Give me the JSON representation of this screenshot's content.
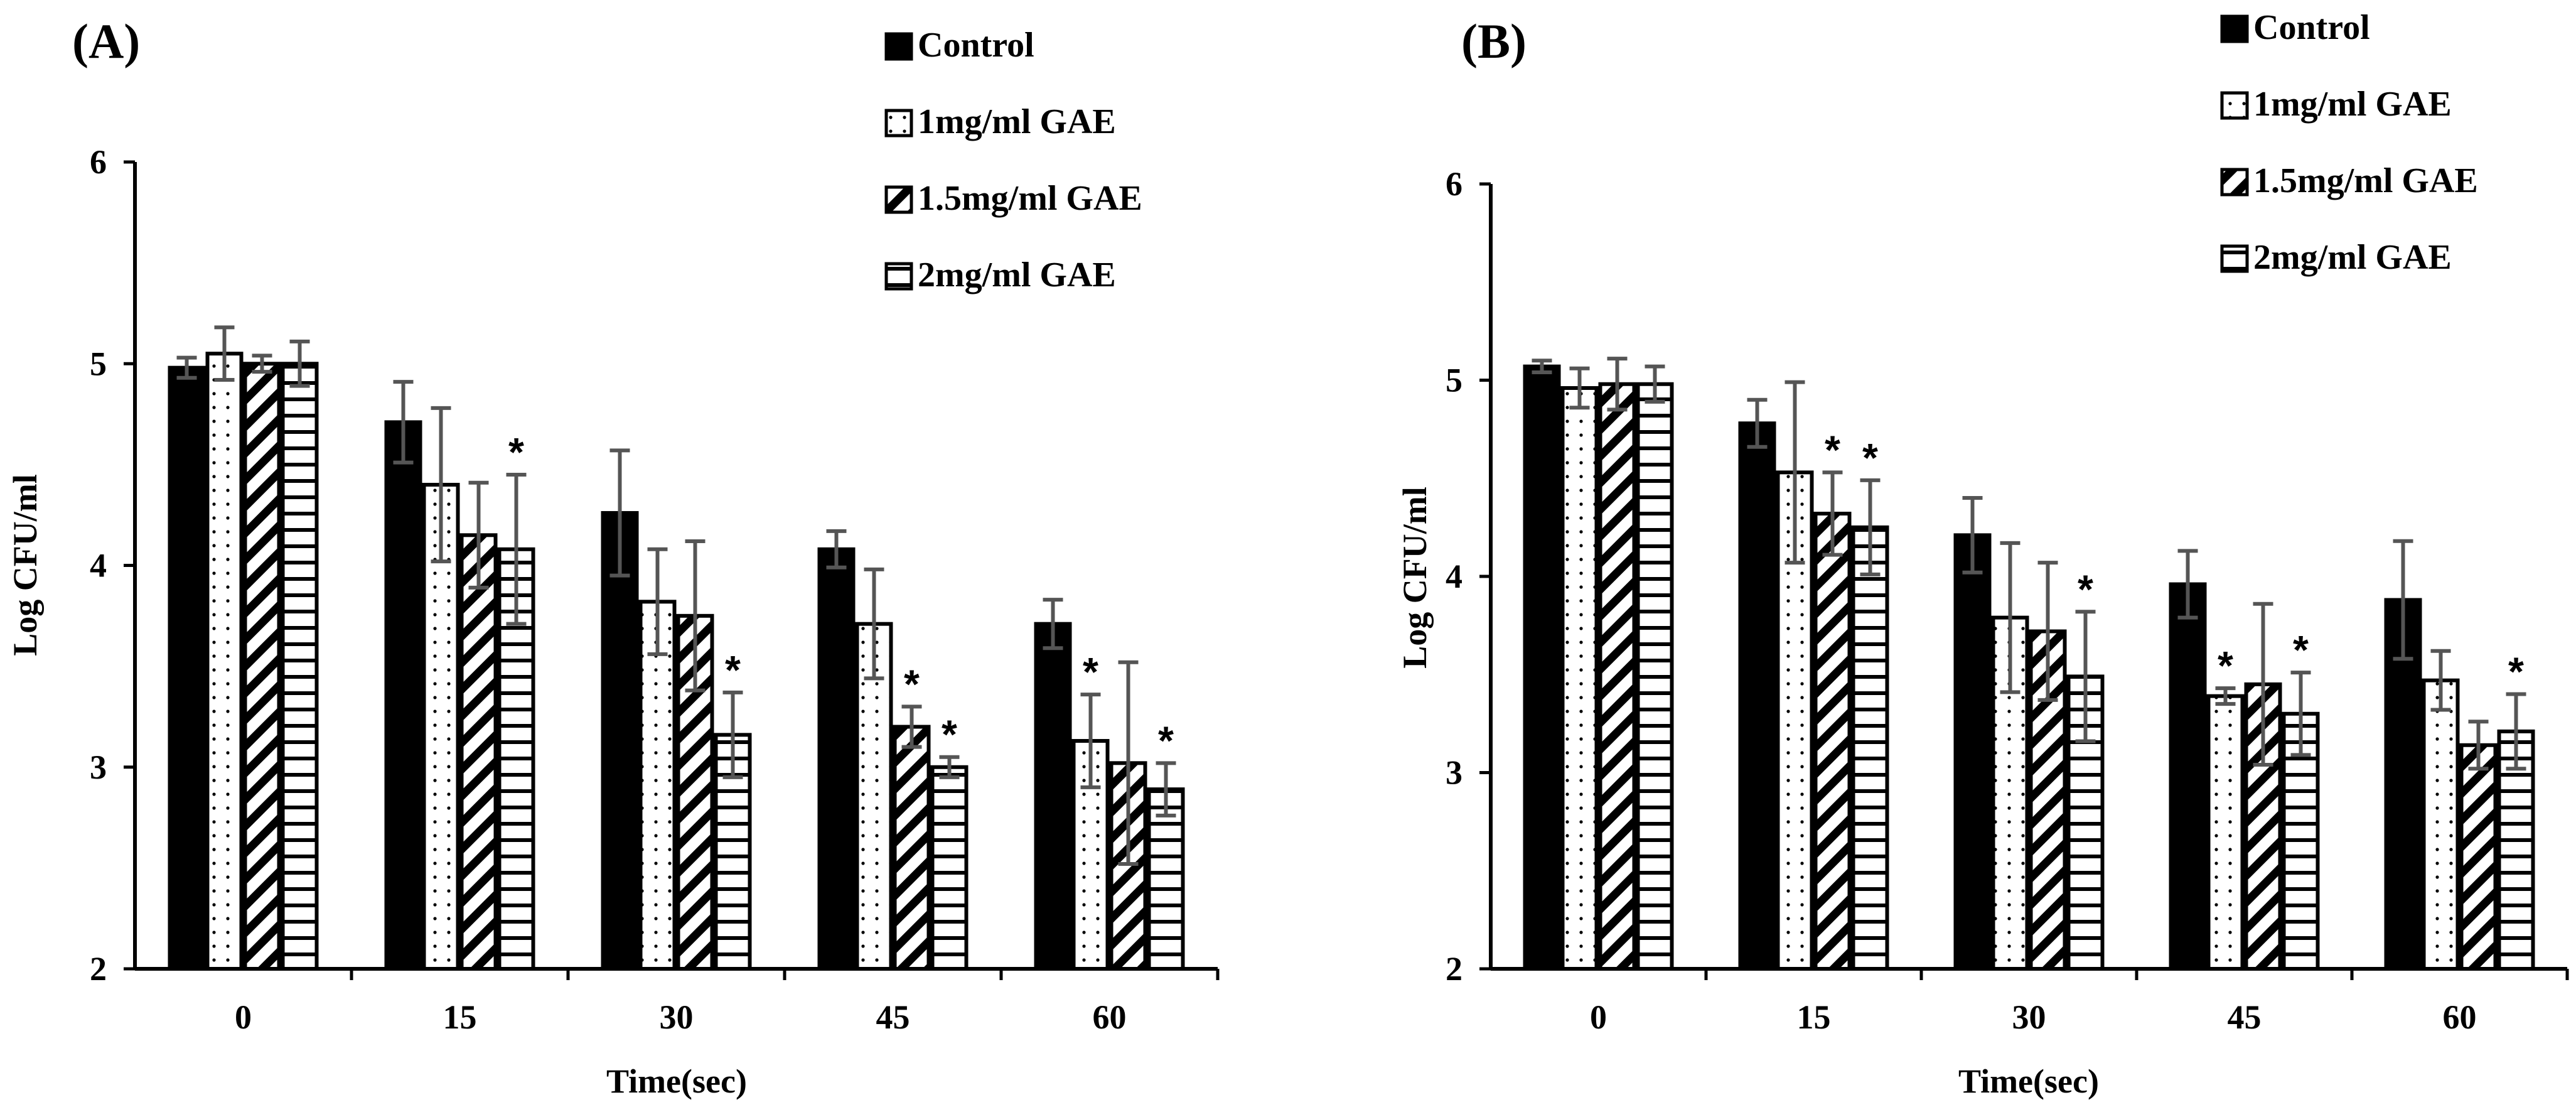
{
  "chart_data": [
    {
      "type": "bar",
      "panel_label": "(A)",
      "categories": [
        "0",
        "15",
        "30",
        "45",
        "60"
      ],
      "xlabel": "Time(sec)",
      "ylabel": "Log CFU/ml",
      "ylim": [
        2,
        6
      ],
      "yticks": [
        "2",
        "3",
        "4",
        "5",
        "6"
      ],
      "legend_position": "top-right",
      "grid": false,
      "series": [
        {
          "name": "Control",
          "pattern": "solid",
          "values": [
            4.98,
            4.71,
            4.26,
            4.08,
            3.71
          ],
          "errors": [
            0.05,
            0.2,
            0.31,
            0.09,
            0.12
          ],
          "significant": [
            false,
            false,
            false,
            false,
            false
          ]
        },
        {
          "name": "1mg/ml GAE",
          "pattern": "dots",
          "values": [
            5.05,
            4.4,
            3.82,
            3.71,
            3.13
          ],
          "errors": [
            0.13,
            0.38,
            0.26,
            0.27,
            0.23
          ],
          "significant": [
            false,
            false,
            false,
            false,
            true
          ]
        },
        {
          "name": "1.5mg/ml GAE",
          "pattern": "diagonal",
          "values": [
            5.0,
            4.15,
            3.75,
            3.2,
            3.02
          ],
          "errors": [
            0.04,
            0.26,
            0.37,
            0.1,
            0.5
          ],
          "significant": [
            false,
            false,
            false,
            true,
            false
          ]
        },
        {
          "name": "2mg/ml GAE",
          "pattern": "horizontal",
          "values": [
            5.0,
            4.08,
            3.16,
            3.0,
            2.89
          ],
          "errors": [
            0.11,
            0.37,
            0.21,
            0.05,
            0.13
          ],
          "significant": [
            false,
            true,
            true,
            true,
            true
          ]
        }
      ],
      "annotation": "*"
    },
    {
      "type": "bar",
      "panel_label": "(B)",
      "categories": [
        "0",
        "15",
        "30",
        "45",
        "60"
      ],
      "xlabel": "Time(sec)",
      "ylabel": "Log CFU/ml",
      "ylim": [
        2,
        6
      ],
      "yticks": [
        "2",
        "3",
        "4",
        "5",
        "6"
      ],
      "legend_position": "top-right",
      "grid": false,
      "series": [
        {
          "name": "Control",
          "pattern": "solid",
          "values": [
            5.07,
            4.78,
            4.21,
            3.96,
            3.88
          ],
          "errors": [
            0.03,
            0.12,
            0.19,
            0.17,
            0.3
          ],
          "significant": [
            false,
            false,
            false,
            false,
            false
          ]
        },
        {
          "name": "1mg/ml GAE",
          "pattern": "dots",
          "values": [
            4.96,
            4.53,
            3.79,
            3.39,
            3.47
          ],
          "errors": [
            0.1,
            0.46,
            0.38,
            0.04,
            0.15
          ],
          "significant": [
            false,
            false,
            false,
            true,
            false
          ]
        },
        {
          "name": "1.5mg/ml GAE",
          "pattern": "diagonal",
          "values": [
            4.98,
            4.32,
            3.72,
            3.45,
            3.14
          ],
          "errors": [
            0.13,
            0.21,
            0.35,
            0.41,
            0.12
          ],
          "significant": [
            false,
            true,
            false,
            false,
            false
          ]
        },
        {
          "name": "2mg/ml GAE",
          "pattern": "horizontal",
          "values": [
            4.98,
            4.25,
            3.49,
            3.3,
            3.21
          ],
          "errors": [
            0.09,
            0.24,
            0.33,
            0.21,
            0.19
          ],
          "significant": [
            false,
            true,
            true,
            true,
            true
          ]
        }
      ],
      "annotation": "*"
    }
  ]
}
